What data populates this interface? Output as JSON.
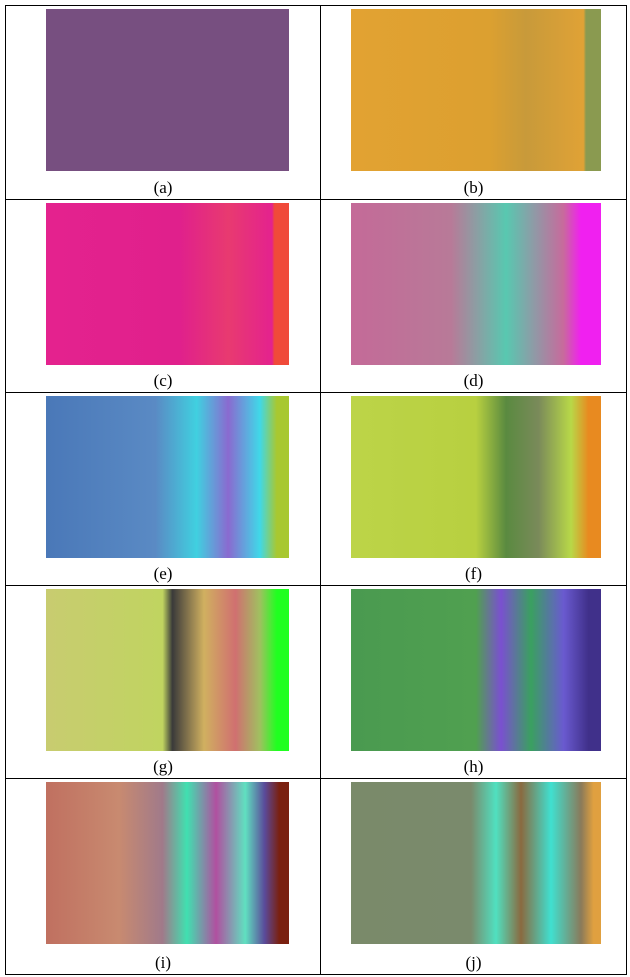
{
  "figure": {
    "panels": [
      {
        "caption": "(a)"
      },
      {
        "caption": "(b)"
      },
      {
        "caption": "(c)"
      },
      {
        "caption": "(d)"
      },
      {
        "caption": "(e)"
      },
      {
        "caption": "(f)"
      },
      {
        "caption": "(g)"
      },
      {
        "caption": "(h)"
      },
      {
        "caption": "(i)"
      },
      {
        "caption": "(j)"
      }
    ]
  }
}
